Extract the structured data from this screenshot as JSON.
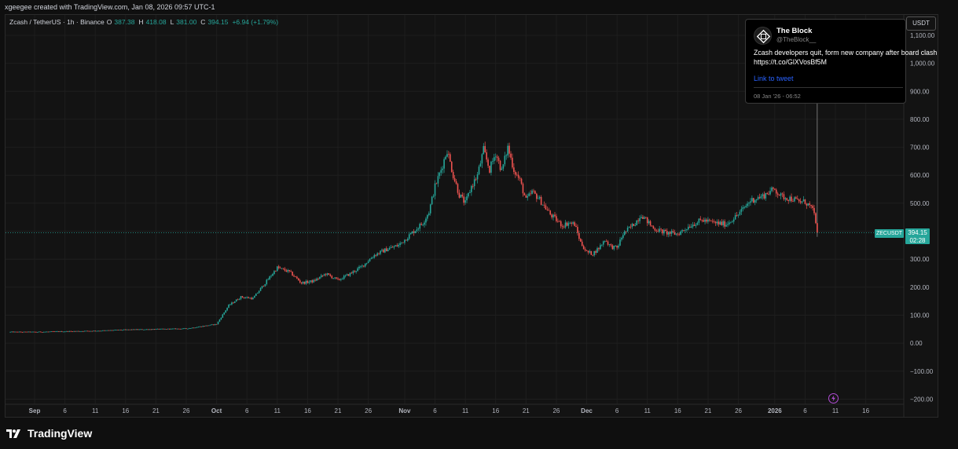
{
  "header": {
    "created_by": "xgeegee created with TradingView.com, Jan 08, 2026 09:57 UTC-1"
  },
  "legend": {
    "symbol": "Zcash / TetherUS · 1h · Binance",
    "o_label": "O",
    "o_value": "387.38",
    "h_label": "H",
    "h_value": "418.08",
    "l_label": "L",
    "l_value": "381.00",
    "c_label": "C",
    "c_value": "394.15",
    "change": "+6.94 (+1.79%)"
  },
  "currency_button": "USDT",
  "tweet": {
    "name": "The Block",
    "handle": "@TheBlock__",
    "text": "Zcash developers quit, form new company after board clash https://t.co/GlXVosBf5M",
    "link_label": "Link to tweet",
    "date": "08 Jan '26 - 06:52"
  },
  "price_label": {
    "symbol": "ZECUSDT",
    "price": "394.15",
    "countdown": "02:28"
  },
  "footer": {
    "brand": "TradingView"
  },
  "colors": {
    "up": "#26a69a",
    "down": "#ef5350",
    "background": "#131313",
    "grid": "#1e1e1e",
    "link": "#2962ff"
  },
  "chart_data": {
    "type": "candlestick",
    "symbol": "ZECUSDT",
    "interval": "1h",
    "y_ticks": [
      -200,
      -100,
      0,
      100,
      200,
      300,
      400,
      500,
      600,
      700,
      800,
      900,
      1000,
      1100
    ],
    "y_tick_labels": [
      "−200.00",
      "−100.00",
      "0.00",
      "100.00",
      "200.00",
      "300.00",
      "400.00",
      "500.00",
      "600.00",
      "700.00",
      "800.00",
      "900.00",
      "1,000.00",
      "1,100.00"
    ],
    "ylim": [
      -220,
      1130
    ],
    "x_labels": [
      "Sep",
      "6",
      "11",
      "16",
      "21",
      "26",
      "Oct",
      "6",
      "11",
      "16",
      "21",
      "26",
      "Nov",
      "6",
      "11",
      "16",
      "21",
      "26",
      "Dec",
      "6",
      "11",
      "16",
      "21",
      "26",
      "2026",
      "6",
      "11",
      "16"
    ],
    "x_label_days": [
      0,
      5,
      10,
      15,
      20,
      25,
      30,
      35,
      40,
      45,
      50,
      55,
      61,
      66,
      71,
      76,
      81,
      86,
      91,
      96,
      101,
      106,
      111,
      116,
      122,
      127,
      132,
      137
    ],
    "x_label_bold": [
      "Sep",
      "Oct",
      "Nov",
      "Dec",
      "2026"
    ],
    "price_path_days": [
      -4,
      0,
      5,
      10,
      15,
      20,
      25,
      30,
      32,
      34,
      36,
      38,
      40,
      42,
      44,
      46,
      48,
      50,
      52,
      54,
      56,
      58,
      60,
      62,
      64,
      65,
      66,
      67,
      68,
      69,
      70,
      71,
      72,
      73,
      74,
      75,
      76,
      77,
      78,
      79,
      80,
      81,
      82,
      83,
      84,
      85,
      86,
      87,
      88,
      89,
      90,
      91,
      92,
      93,
      94,
      95,
      96,
      97,
      98,
      99,
      100,
      102,
      104,
      106,
      108,
      110,
      112,
      114,
      116,
      118,
      120,
      121,
      122,
      123,
      124,
      125,
      126,
      127,
      127.5,
      128,
      128.5,
      129.2
    ],
    "price_path_values": [
      40,
      40,
      42,
      44,
      48,
      50,
      52,
      68,
      135,
      165,
      160,
      215,
      270,
      255,
      215,
      222,
      248,
      225,
      248,
      275,
      315,
      335,
      350,
      390,
      430,
      470,
      560,
      620,
      690,
      600,
      530,
      500,
      560,
      600,
      690,
      620,
      680,
      615,
      700,
      620,
      580,
      510,
      540,
      520,
      490,
      460,
      440,
      420,
      430,
      425,
      360,
      325,
      320,
      340,
      370,
      345,
      340,
      390,
      410,
      430,
      460,
      410,
      395,
      390,
      420,
      440,
      430,
      425,
      460,
      510,
      525,
      540,
      550,
      525,
      520,
      515,
      505,
      505,
      495,
      485,
      460,
      394
    ],
    "last_close": 394.15,
    "spike_high": 1050
  }
}
